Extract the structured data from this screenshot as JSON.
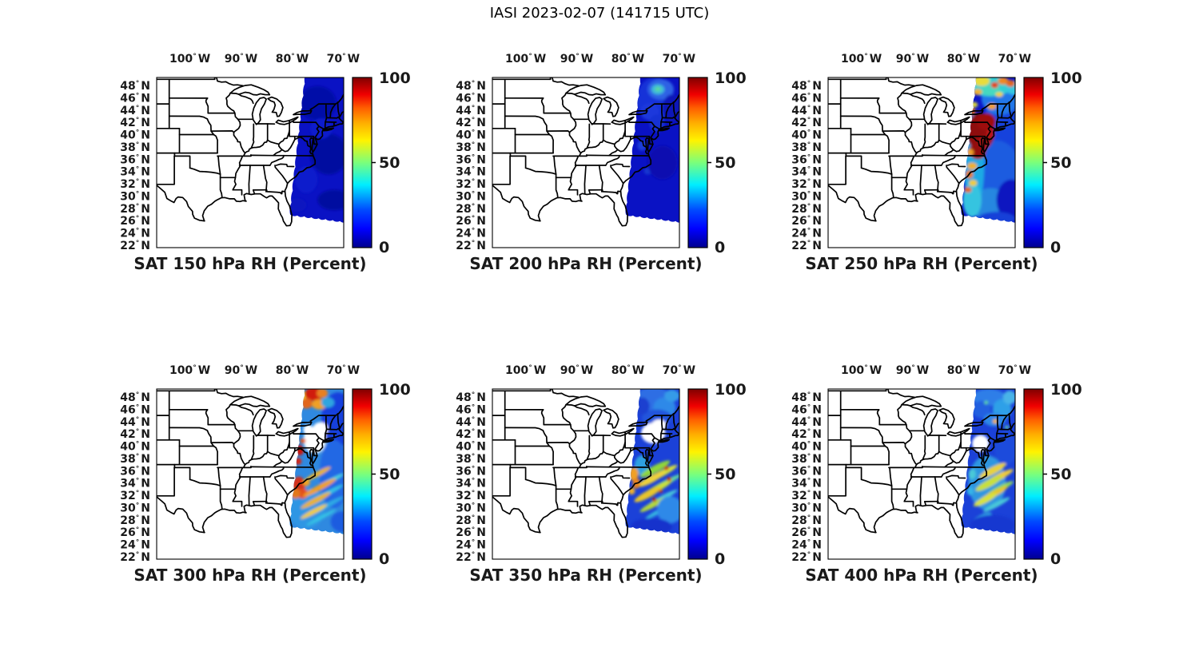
{
  "suptitle": "IASI 2023-02-07 (141715 UTC)",
  "chart_data": {
    "type": "heatmap",
    "subtype": "satellite-swath-map-grid",
    "layout": {
      "rows": 2,
      "cols": 3,
      "legend_position": "right-of-each-panel"
    },
    "variable": "RH",
    "units": "Percent",
    "colormap": "jet",
    "axes": {
      "deg": "°",
      "lon_hemi": "W",
      "lat_hemi": "N",
      "lon_tick_values": [
        100,
        90,
        80,
        70
      ],
      "lat_tick_values": [
        48,
        46,
        44,
        42,
        40,
        38,
        36,
        34,
        32,
        30,
        28,
        26,
        24,
        22
      ],
      "lon_range_degW": [
        106.5,
        69.9
      ],
      "lat_range_degN": [
        21.6,
        49.3
      ],
      "grid": false
    },
    "colorbar": {
      "min": 0,
      "max": 100,
      "tick_labels": [
        "100",
        "50",
        "0"
      ],
      "tick_values": [
        100,
        50,
        0
      ]
    },
    "panels": [
      {
        "title": "SAT 150 hPa RH (Percent)",
        "pressure_hPa": 150,
        "swath_base_color": "#0A12C4",
        "blobs": [
          [
            0.86,
            0.15,
            0.1,
            0.1,
            "#0009A8"
          ],
          [
            0.92,
            0.45,
            0.1,
            0.12,
            "#000DA0"
          ],
          [
            0.8,
            0.6,
            0.06,
            0.08,
            "#0B1ACC"
          ],
          [
            0.95,
            0.72,
            0.09,
            0.06,
            "#000CA0"
          ],
          [
            0.75,
            0.75,
            0.05,
            0.04,
            "#0915C0"
          ],
          [
            0.88,
            0.3,
            0.06,
            0.06,
            "#0B1ACC"
          ]
        ]
      },
      {
        "title": "SAT 200 hPa RH (Percent)",
        "pressure_hPa": 200,
        "swath_base_color": "#0A12C4",
        "blobs": [
          [
            0.87,
            0.13,
            0.1,
            0.13,
            "#1531D8"
          ],
          [
            0.9,
            0.07,
            0.07,
            0.06,
            "#2E62E4"
          ],
          [
            0.885,
            0.07,
            0.035,
            0.03,
            "#3FB9D8"
          ],
          [
            0.885,
            0.068,
            0.016,
            0.013,
            "#59D9A0"
          ],
          [
            0.84,
            0.2,
            0.05,
            0.05,
            "#1A37DC"
          ],
          [
            0.88,
            0.27,
            0.04,
            0.05,
            "#1531D4"
          ],
          [
            0.96,
            0.18,
            0.05,
            0.08,
            "#0A12B8"
          ],
          [
            0.8,
            0.4,
            0.025,
            0.03,
            "#1C3CD8"
          ],
          [
            0.83,
            0.55,
            0.02,
            0.02,
            "#1838D0"
          ],
          [
            0.91,
            0.5,
            0.08,
            0.1,
            "#070FB0"
          ]
        ]
      },
      {
        "title": "SAT 250 hPa RH (Percent)",
        "pressure_hPa": 250,
        "swath_base_color": "#0C16C8",
        "blobs": [
          [
            0.95,
            0.3,
            0.12,
            0.25,
            "#1342DC"
          ],
          [
            0.92,
            0.12,
            0.1,
            0.1,
            "#2277E8"
          ],
          [
            0.9,
            0.55,
            0.13,
            0.18,
            "#1C5BE0"
          ],
          [
            0.87,
            0.75,
            0.1,
            0.1,
            "#2887E0"
          ],
          [
            0.78,
            0.5,
            0.055,
            0.28,
            "#1FAAE4"
          ],
          [
            0.77,
            0.72,
            0.05,
            0.1,
            "#35C4E0"
          ],
          [
            0.86,
            0.05,
            0.13,
            0.06,
            "#30CFD4"
          ],
          [
            0.99,
            0.06,
            0.04,
            0.04,
            "#35C8E0"
          ],
          [
            0.82,
            0.02,
            0.045,
            0.03,
            "#E8DC3A"
          ],
          [
            0.87,
            0.075,
            0.05,
            0.035,
            "#45D9C0"
          ],
          [
            0.935,
            0.02,
            0.028,
            0.022,
            "#EE8822"
          ],
          [
            0.89,
            0.045,
            0.02,
            0.018,
            "#E04414"
          ],
          [
            0.975,
            0.035,
            0.024,
            0.02,
            "#E2661A"
          ],
          [
            0.8,
            0.085,
            0.024,
            0.018,
            "#EFB02A"
          ],
          [
            0.915,
            0.1,
            0.02,
            0.014,
            "#EFD23A"
          ],
          [
            0.76,
            0.2,
            0.028,
            0.025,
            "#E2661A"
          ],
          [
            0.875,
            0.17,
            0.024,
            0.018,
            "#EFA028"
          ],
          [
            0.78,
            0.16,
            0.02,
            0.016,
            "#DCD83A"
          ],
          [
            0.815,
            0.32,
            0.075,
            0.11,
            "#8E0A0C"
          ],
          [
            0.845,
            0.26,
            0.05,
            0.05,
            "#9E0E0E"
          ],
          [
            0.8,
            0.43,
            0.045,
            0.05,
            "#930E0E"
          ],
          [
            0.835,
            0.38,
            0.032,
            0.04,
            "#A81212"
          ],
          [
            0.865,
            0.33,
            0.02,
            0.03,
            "#B71414"
          ],
          [
            0.77,
            0.52,
            0.026,
            0.02,
            "#EFB02A"
          ],
          [
            0.755,
            0.57,
            0.02,
            0.024,
            "#E2781E"
          ],
          [
            0.775,
            0.62,
            0.022,
            0.018,
            "#EFCC3A"
          ],
          [
            0.748,
            0.66,
            0.02,
            0.017,
            "#E2661A"
          ],
          [
            0.76,
            0.44,
            0.018,
            0.02,
            "#EFA028"
          ],
          [
            0.98,
            0.72,
            0.08,
            0.12,
            "#0C18C0"
          ],
          [
            0.9,
            0.83,
            0.1,
            0.04,
            "#1240D8"
          ]
        ]
      },
      {
        "title": "SAT 300 hPa RH (Percent)",
        "pressure_hPa": 300,
        "swath_base_color": "#2F89E0",
        "blobs": [
          [
            0.97,
            0.18,
            0.09,
            0.16,
            "#1240DC"
          ],
          [
            0.95,
            0.5,
            0.08,
            0.2,
            "#2368E4"
          ],
          [
            0.8,
            0.7,
            0.1,
            0.12,
            "#2E96E4"
          ],
          [
            0.78,
            0.04,
            0.03,
            0.025,
            "#EFD23A"
          ],
          [
            0.84,
            0.03,
            0.05,
            0.04,
            "#D01E10"
          ],
          [
            0.8,
            0.085,
            0.035,
            0.03,
            "#E2661A"
          ],
          [
            0.885,
            0.025,
            0.03,
            0.028,
            "#E88024"
          ],
          [
            0.87,
            0.09,
            0.04,
            0.03,
            "#EFA028"
          ],
          [
            0.915,
            0.08,
            0.035,
            0.03,
            "#2FA5E0"
          ],
          [
            0.845,
            0.3,
            0.06,
            0.08,
            "#FFFFFF"
          ],
          [
            0.875,
            0.235,
            0.04,
            0.04,
            "#FFFFFF"
          ],
          [
            0.81,
            0.24,
            0.025,
            0.03,
            "#FFFFFF"
          ],
          [
            0.765,
            0.36,
            0.022,
            0.03,
            "#C8140E"
          ],
          [
            0.757,
            0.425,
            0.018,
            0.02,
            "#D42814"
          ],
          [
            0.782,
            0.305,
            0.015,
            0.015,
            "#E25A1A"
          ],
          [
            0.76,
            0.565,
            0.035,
            0.05,
            "#D4301A"
          ],
          [
            0.78,
            0.615,
            0.03,
            0.03,
            "#E2501C"
          ],
          [
            0.742,
            0.615,
            0.025,
            0.03,
            "#E2781E"
          ],
          [
            0.8,
            0.55,
            0.02,
            0.02,
            "#EFA028"
          ],
          [
            0.86,
            0.5,
            0.08,
            0.014,
            "#E8B22C",
            -28
          ],
          [
            0.92,
            0.545,
            0.09,
            0.012,
            "#49CFE0",
            -28
          ],
          [
            0.87,
            0.58,
            0.1,
            0.016,
            "#EFA028",
            -28
          ],
          [
            0.9,
            0.62,
            0.11,
            0.013,
            "#35C1E4",
            -28
          ],
          [
            0.85,
            0.655,
            0.09,
            0.015,
            "#E8B22C",
            -28
          ],
          [
            0.91,
            0.685,
            0.1,
            0.013,
            "#2FAAE4",
            -28
          ],
          [
            0.84,
            0.72,
            0.08,
            0.013,
            "#EFCC3A",
            -28
          ],
          [
            0.88,
            0.755,
            0.09,
            0.011,
            "#35C1E4",
            -28
          ],
          [
            0.99,
            0.78,
            0.06,
            0.06,
            "#1C5BE0"
          ]
        ]
      },
      {
        "title": "SAT 350 hPa RH (Percent)",
        "pressure_hPa": 350,
        "swath_base_color": "#1B41D8",
        "blobs": [
          [
            0.86,
            0.06,
            0.1,
            0.07,
            "#2E6EE4"
          ],
          [
            0.92,
            0.11,
            0.06,
            0.06,
            "#2F89E8"
          ],
          [
            0.88,
            0.17,
            0.08,
            0.05,
            "#2055DC"
          ],
          [
            0.96,
            0.04,
            0.04,
            0.035,
            "#359BE8"
          ],
          [
            0.8,
            0.1,
            0.04,
            0.05,
            "#1B41D0"
          ],
          [
            0.86,
            0.26,
            0.065,
            0.06,
            "#FFFFFF"
          ],
          [
            0.89,
            0.215,
            0.04,
            0.035,
            "#FFFFFF"
          ],
          [
            0.8,
            0.45,
            0.04,
            0.06,
            "#2FA0E0"
          ],
          [
            0.87,
            0.47,
            0.09,
            0.02,
            "#8FD83A",
            -28
          ],
          [
            0.9,
            0.5,
            0.1,
            0.018,
            "#D8E23A",
            -28
          ],
          [
            0.85,
            0.53,
            0.08,
            0.02,
            "#EFD23A",
            -28
          ],
          [
            0.92,
            0.555,
            0.1,
            0.015,
            "#5FD8A0",
            -28
          ],
          [
            0.88,
            0.585,
            0.09,
            0.018,
            "#C8E03A",
            -28
          ],
          [
            0.83,
            0.62,
            0.08,
            0.02,
            "#E8C62C",
            -28
          ],
          [
            0.91,
            0.64,
            0.09,
            0.014,
            "#49C8D8",
            -28
          ],
          [
            0.86,
            0.68,
            0.08,
            0.016,
            "#B4D83A",
            -28
          ],
          [
            0.89,
            0.72,
            0.08,
            0.013,
            "#35B4E0",
            -28
          ],
          [
            0.755,
            0.5,
            0.025,
            0.04,
            "#EFA028"
          ],
          [
            0.77,
            0.555,
            0.02,
            0.03,
            "#E8821E"
          ],
          [
            0.745,
            0.6,
            0.018,
            0.02,
            "#EFB02A"
          ],
          [
            0.93,
            0.465,
            0.012,
            0.012,
            "#C8140E"
          ],
          [
            0.945,
            0.53,
            0.012,
            0.012,
            "#C8140E"
          ],
          [
            0.865,
            0.65,
            0.012,
            0.012,
            "#B41010"
          ],
          [
            0.9,
            0.6,
            0.01,
            0.01,
            "#D42814"
          ],
          [
            0.95,
            0.71,
            0.07,
            0.08,
            "#2F89E8"
          ],
          [
            0.85,
            0.81,
            0.11,
            0.05,
            "#1230CC"
          ]
        ]
      },
      {
        "title": "SAT 400 hPa RH (Percent)",
        "pressure_hPa": 400,
        "swath_base_color": "#1B41D8",
        "blobs": [
          [
            0.86,
            0.05,
            0.09,
            0.05,
            "#2E7EE8"
          ],
          [
            0.93,
            0.12,
            0.05,
            0.06,
            "#2FA0E8"
          ],
          [
            0.82,
            0.12,
            0.05,
            0.05,
            "#2360E0"
          ],
          [
            0.89,
            0.18,
            0.06,
            0.04,
            "#2F89E8"
          ],
          [
            0.97,
            0.05,
            0.035,
            0.04,
            "#49B4E8"
          ],
          [
            0.893,
            0.19,
            0.013,
            0.013,
            "#EFB02A"
          ],
          [
            0.845,
            0.08,
            0.01,
            0.01,
            "#5FD89A"
          ],
          [
            0.955,
            0.225,
            0.01,
            0.01,
            "#5FD89A"
          ],
          [
            0.815,
            0.32,
            0.045,
            0.05,
            "#FFFFFF"
          ],
          [
            0.85,
            0.55,
            0.1,
            0.16,
            "#2F96E0"
          ],
          [
            0.95,
            0.35,
            0.06,
            0.1,
            "#1B4BDC"
          ],
          [
            0.88,
            0.48,
            0.08,
            0.02,
            "#E8D23A",
            -28
          ],
          [
            0.91,
            0.52,
            0.09,
            0.018,
            "#EFCC3A",
            -28
          ],
          [
            0.86,
            0.555,
            0.08,
            0.02,
            "#C8E03A",
            -28
          ],
          [
            0.92,
            0.585,
            0.08,
            0.016,
            "#8FD85A",
            -28
          ],
          [
            0.88,
            0.62,
            0.09,
            0.016,
            "#E8C62C",
            -28
          ],
          [
            0.84,
            0.65,
            0.07,
            0.018,
            "#D8E23A",
            -28
          ],
          [
            0.9,
            0.68,
            0.08,
            0.014,
            "#49C8D8",
            -28
          ],
          [
            0.77,
            0.5,
            0.02,
            0.03,
            "#49C8D8"
          ],
          [
            0.76,
            0.6,
            0.018,
            0.025,
            "#35B4E8"
          ],
          [
            0.82,
            0.76,
            0.06,
            0.02,
            "#2FA0E0",
            -28
          ],
          [
            0.88,
            0.8,
            0.12,
            0.06,
            "#1838D0"
          ]
        ]
      }
    ]
  }
}
